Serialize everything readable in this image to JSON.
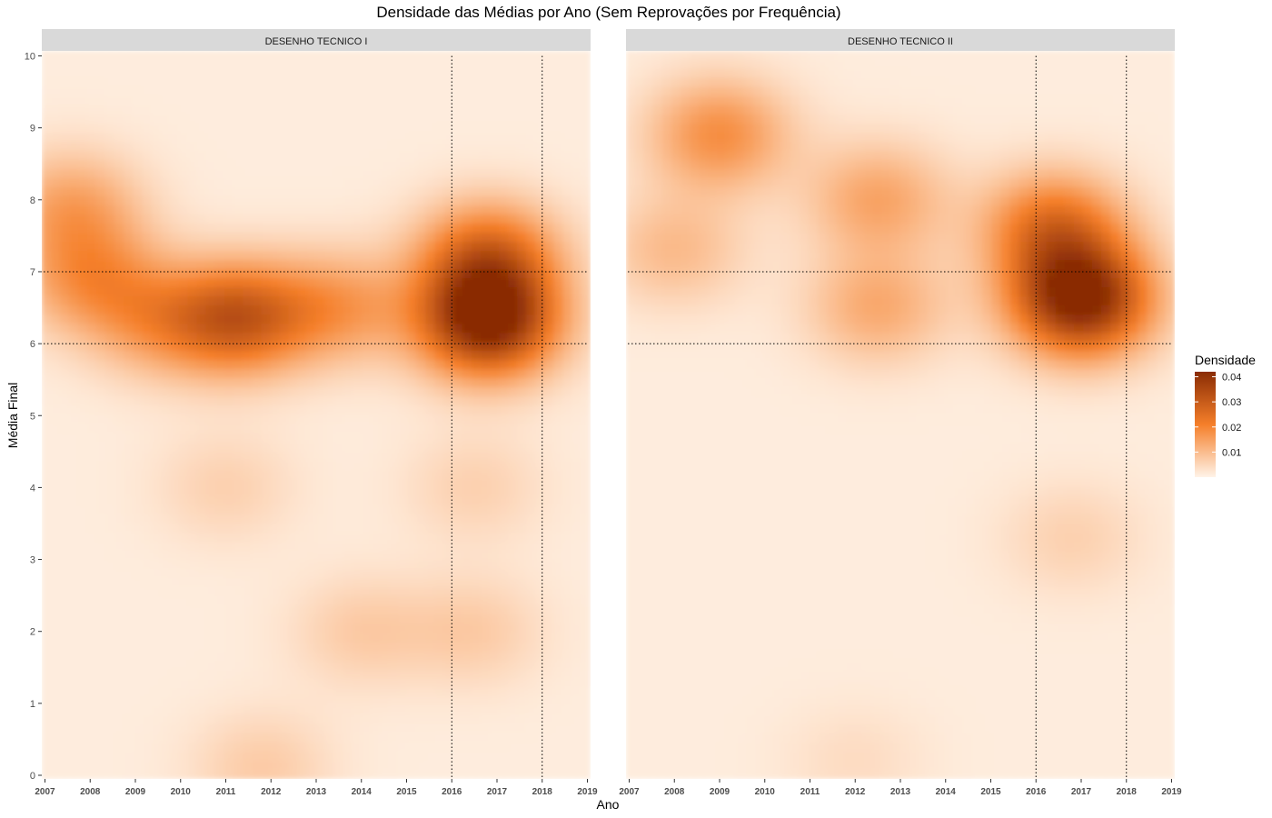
{
  "title": "Densidade das Médias por Ano (Sem Reprovações por Frequência)",
  "chart_data": {
    "type": "heatmap",
    "title": "Densidade das Médias por Ano (Sem Reprovações por Frequência)",
    "xlabel": "Ano",
    "ylabel": "Média Final",
    "xlim": [
      2007,
      2019
    ],
    "ylim": [
      0,
      10
    ],
    "x_ticks": [
      "2007",
      "2008",
      "2009",
      "2010",
      "2011",
      "2012",
      "2013",
      "2014",
      "2015",
      "2016",
      "2017",
      "2018",
      "2019"
    ],
    "y_ticks": [
      "0",
      "1",
      "2",
      "3",
      "4",
      "5",
      "6",
      "7",
      "8",
      "9",
      "10"
    ],
    "reference_lines": {
      "x": [
        2016,
        2018
      ],
      "y": [
        6,
        7
      ],
      "style": "dotted"
    },
    "legend": {
      "title": "Densidade",
      "ticks": [
        "0.01",
        "0.02",
        "0.03",
        "0.04"
      ],
      "range": [
        0,
        0.042
      ],
      "placement": "right",
      "color_low": "#fff3e8",
      "color_mid": "#f57f2a",
      "color_high": "#8a2c04"
    },
    "panels": [
      {
        "name": "DESENHO TECNICO I",
        "density_peaks": [
          {
            "x": 2016.8,
            "y": 6.3,
            "density": 0.041
          },
          {
            "x": 2016.8,
            "y": 7.2,
            "density": 0.024
          },
          {
            "x": 2011.3,
            "y": 6.35,
            "density": 0.027
          },
          {
            "x": 2008.0,
            "y": 6.9,
            "density": 0.015
          },
          {
            "x": 2007.6,
            "y": 7.9,
            "density": 0.013
          },
          {
            "x": 2013.5,
            "y": 6.5,
            "density": 0.014
          },
          {
            "x": 2009.5,
            "y": 6.3,
            "density": 0.012
          },
          {
            "x": 2014.0,
            "y": 2.0,
            "density": 0.006
          },
          {
            "x": 2016.5,
            "y": 2.0,
            "density": 0.006
          },
          {
            "x": 2011.0,
            "y": 4.0,
            "density": 0.005
          },
          {
            "x": 2016.5,
            "y": 4.0,
            "density": 0.005
          },
          {
            "x": 2011.8,
            "y": 0.1,
            "density": 0.006
          }
        ]
      },
      {
        "name": "DESENHO TECNICO II",
        "density_peaks": [
          {
            "x": 2017.0,
            "y": 6.6,
            "density": 0.042
          },
          {
            "x": 2016.4,
            "y": 7.6,
            "density": 0.023
          },
          {
            "x": 2009.0,
            "y": 8.9,
            "density": 0.017
          },
          {
            "x": 2012.5,
            "y": 8.0,
            "density": 0.013
          },
          {
            "x": 2012.5,
            "y": 6.5,
            "density": 0.012
          },
          {
            "x": 2008.0,
            "y": 7.3,
            "density": 0.009
          },
          {
            "x": 2016.8,
            "y": 3.3,
            "density": 0.005
          },
          {
            "x": 2012.0,
            "y": 0.2,
            "density": 0.003
          }
        ]
      }
    ]
  }
}
